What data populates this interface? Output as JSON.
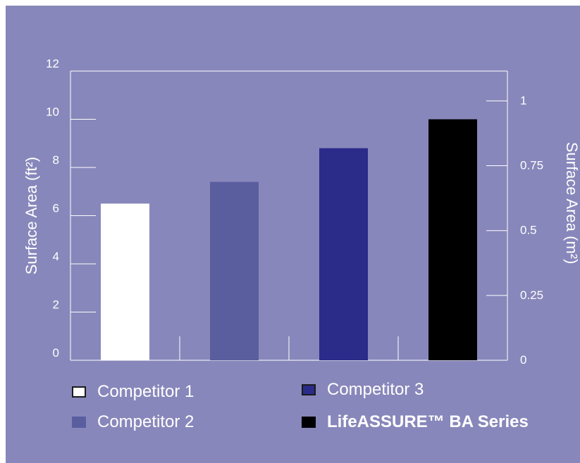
{
  "chart_data": {
    "type": "bar",
    "categories": [
      "Competitor 1",
      "Competitor 2",
      "Competitor 3",
      "LifeASSURE™ BA Series"
    ],
    "series": [
      {
        "values": [
          6.5,
          7.4,
          8.8,
          10.0
        ]
      }
    ],
    "colors": [
      "#ffffff",
      "#5a5e9f",
      "#2b2b8a",
      "#000000"
    ],
    "background": "#8887bb",
    "ylabel": "Surface Area (ft²)",
    "ylabel_right": "Surface Area (m²)",
    "ylim": [
      0,
      12
    ],
    "yticks": [
      0,
      2,
      4,
      6,
      8,
      10,
      12
    ],
    "y2lim": [
      0,
      1.115
    ],
    "y2ticks": [
      0,
      0.25,
      0.5,
      0.75,
      1
    ],
    "y2tick_labels": [
      "0",
      "0.25",
      "0.5",
      "0.75",
      "1"
    ],
    "legend": [
      {
        "label": "Competitor 1",
        "color": "#ffffff",
        "bold": false
      },
      {
        "label": "Competitor 2",
        "color": "#5a5e9f",
        "bold": false
      },
      {
        "label": "Competitor 3",
        "color": "#2b2b8a",
        "bold": false
      },
      {
        "label": "LifeASSURE™ BA Series",
        "color": "#000000",
        "bold": true
      }
    ],
    "legend_position": "bottom",
    "grid": false
  }
}
